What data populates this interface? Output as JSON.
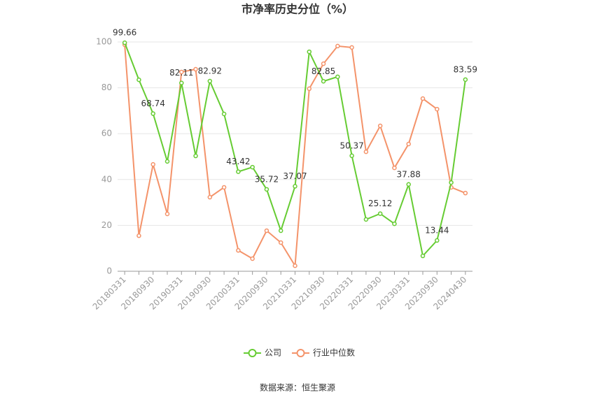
{
  "chart_data": {
    "type": "line",
    "title": "市净率历史分位（%）",
    "source": "数据来源：恒生聚源",
    "categories": [
      "20180331",
      null,
      "20180930",
      null,
      "20190331",
      null,
      "20190930",
      null,
      "20200331",
      null,
      "20200930",
      null,
      "20210331",
      null,
      "20210930",
      null,
      "20220331",
      null,
      "20220930",
      null,
      "20230331",
      null,
      "20230930",
      null,
      "20240430"
    ],
    "series": [
      {
        "name": "公司",
        "color": "#66cc33",
        "values": [
          99.66,
          83.5,
          68.74,
          47.9,
          82.11,
          50.3,
          82.92,
          68.6,
          43.42,
          45.4,
          35.72,
          17.7,
          37.07,
          95.7,
          82.85,
          84.8,
          50.37,
          22.6,
          25.12,
          20.7,
          37.88,
          6.7,
          13.44,
          38.7,
          83.59
        ],
        "value_labels": [
          "99.66",
          null,
          "68.74",
          null,
          "82.11",
          null,
          "82.92",
          null,
          "43.42",
          null,
          "35.72",
          null,
          "37.07",
          null,
          "82.85",
          null,
          "50.37",
          null,
          "25.12",
          null,
          "37.88",
          null,
          "13.44",
          null,
          "83.59"
        ]
      },
      {
        "name": "行业中位数",
        "color": "#f4936a",
        "values": [
          98.8,
          15.5,
          46.6,
          25.0,
          86.9,
          88.1,
          32.3,
          36.6,
          9.1,
          5.5,
          17.7,
          12.5,
          2.4,
          79.6,
          90.5,
          98.2,
          97.6,
          52.1,
          63.4,
          45.1,
          55.5,
          75.3,
          70.7,
          36.6,
          34.1
        ]
      }
    ],
    "ylim": [
      0,
      100
    ],
    "yticks": [
      0,
      20,
      40,
      60,
      80,
      100
    ],
    "grid": true,
    "legend": "bottom"
  }
}
